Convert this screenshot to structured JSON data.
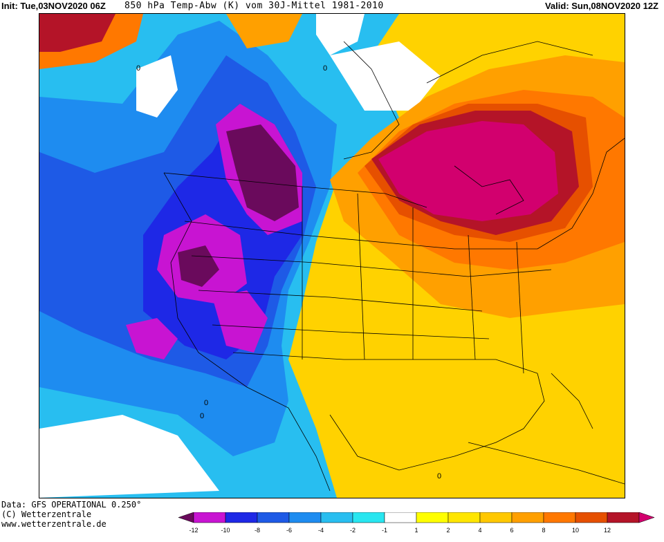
{
  "header": {
    "init": "Init: Tue,03NOV2020 06Z",
    "title": "850 hPa Temp-Abw (K) vom 30J-Mittel 1981-2010",
    "valid": "Valid: Sun,08NOV2020 12Z"
  },
  "footer": {
    "data_line": "Data: GFS OPERATIONAL 0.250°",
    "copyright": "(C) Wetterzentrale",
    "url": "www.wetterzentrale.de"
  },
  "legend": {
    "bins": [
      {
        "color": "#6a0a5c"
      },
      {
        "color": "#c814d2"
      },
      {
        "color": "#1e28e6"
      },
      {
        "color": "#1e5ae6"
      },
      {
        "color": "#1e8cf0"
      },
      {
        "color": "#28bef0"
      },
      {
        "color": "#28e6f0"
      },
      {
        "color": "#ffffff"
      },
      {
        "color": "#ffff00"
      },
      {
        "color": "#ffe600"
      },
      {
        "color": "#ffc800"
      },
      {
        "color": "#ffa000"
      },
      {
        "color": "#ff7800"
      },
      {
        "color": "#e65000"
      },
      {
        "color": "#b41428"
      },
      {
        "color": "#d2006e"
      }
    ],
    "tick_labels": [
      "-12",
      "-10",
      "-8",
      "-6",
      "-4",
      "-2",
      "-1",
      "1",
      "2",
      "4",
      "6",
      "8",
      "10",
      "12"
    ]
  },
  "map_labels": [
    "0",
    "0",
    "0",
    "0",
    "0"
  ]
}
